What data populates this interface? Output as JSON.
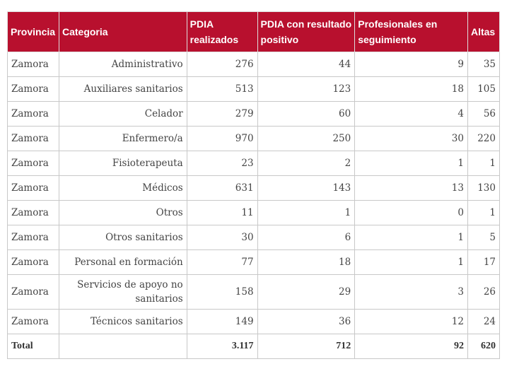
{
  "headers": [
    "Provincia",
    "Categoria",
    "PDIA realizados",
    "PDIA con resultado positivo",
    "Profesionales en seguimiento",
    "Altas"
  ],
  "rows": [
    [
      "Zamora",
      "Administrativo",
      "276",
      "44",
      "9",
      "35"
    ],
    [
      "Zamora",
      "Auxiliares sanitarios",
      "513",
      "123",
      "18",
      "105"
    ],
    [
      "Zamora",
      "Celador",
      "279",
      "60",
      "4",
      "56"
    ],
    [
      "Zamora",
      "Enfermero/a",
      "970",
      "250",
      "30",
      "220"
    ],
    [
      "Zamora",
      "Fisioterapeuta",
      "23",
      "2",
      "1",
      "1"
    ],
    [
      "Zamora",
      "Médicos",
      "631",
      "143",
      "13",
      "130"
    ],
    [
      "Zamora",
      "Otros",
      "11",
      "1",
      "0",
      "1"
    ],
    [
      "Zamora",
      "Otros sanitarios",
      "30",
      "6",
      "1",
      "5"
    ],
    [
      "Zamora",
      "Personal en formación",
      "77",
      "18",
      "1",
      "17"
    ],
    [
      "Zamora",
      "Servicios de apoyo no sanitarios",
      "158",
      "29",
      "3",
      "26"
    ],
    [
      "Zamora",
      "Técnicos sanitarios",
      "149",
      "36",
      "12",
      "24"
    ]
  ],
  "total": [
    "Total",
    "",
    "3.117",
    "712",
    "92",
    "620"
  ],
  "colors": {
    "header_bg": "#b8102e"
  }
}
